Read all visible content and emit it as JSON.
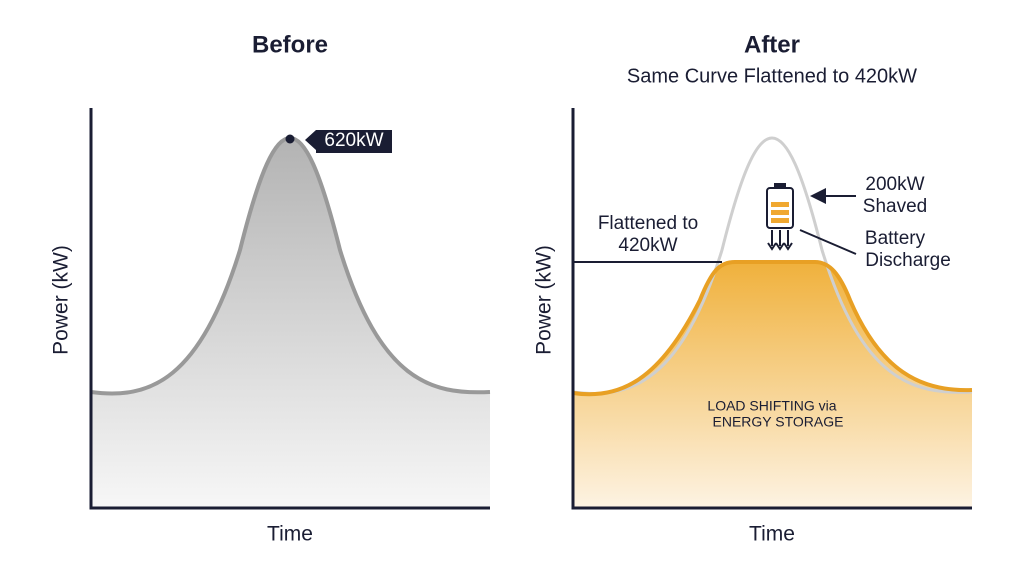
{
  "before": {
    "title": "Before",
    "peak_label": "620kW",
    "y_axis": "Power (kW)",
    "x_axis": "Time"
  },
  "after": {
    "title": "After",
    "subtitle": "Same Curve Flattened to 420kW",
    "y_axis": "Power (kW)",
    "x_axis": "Time",
    "flattened_label": [
      "Flattened to",
      "420kW"
    ],
    "shaved_label": [
      "200kW",
      "Shaved"
    ],
    "battery_label": [
      "Battery",
      "Discharge"
    ],
    "center_label": [
      "LOAD SHIFTING via",
      "ENERGY STORAGE"
    ]
  }
}
